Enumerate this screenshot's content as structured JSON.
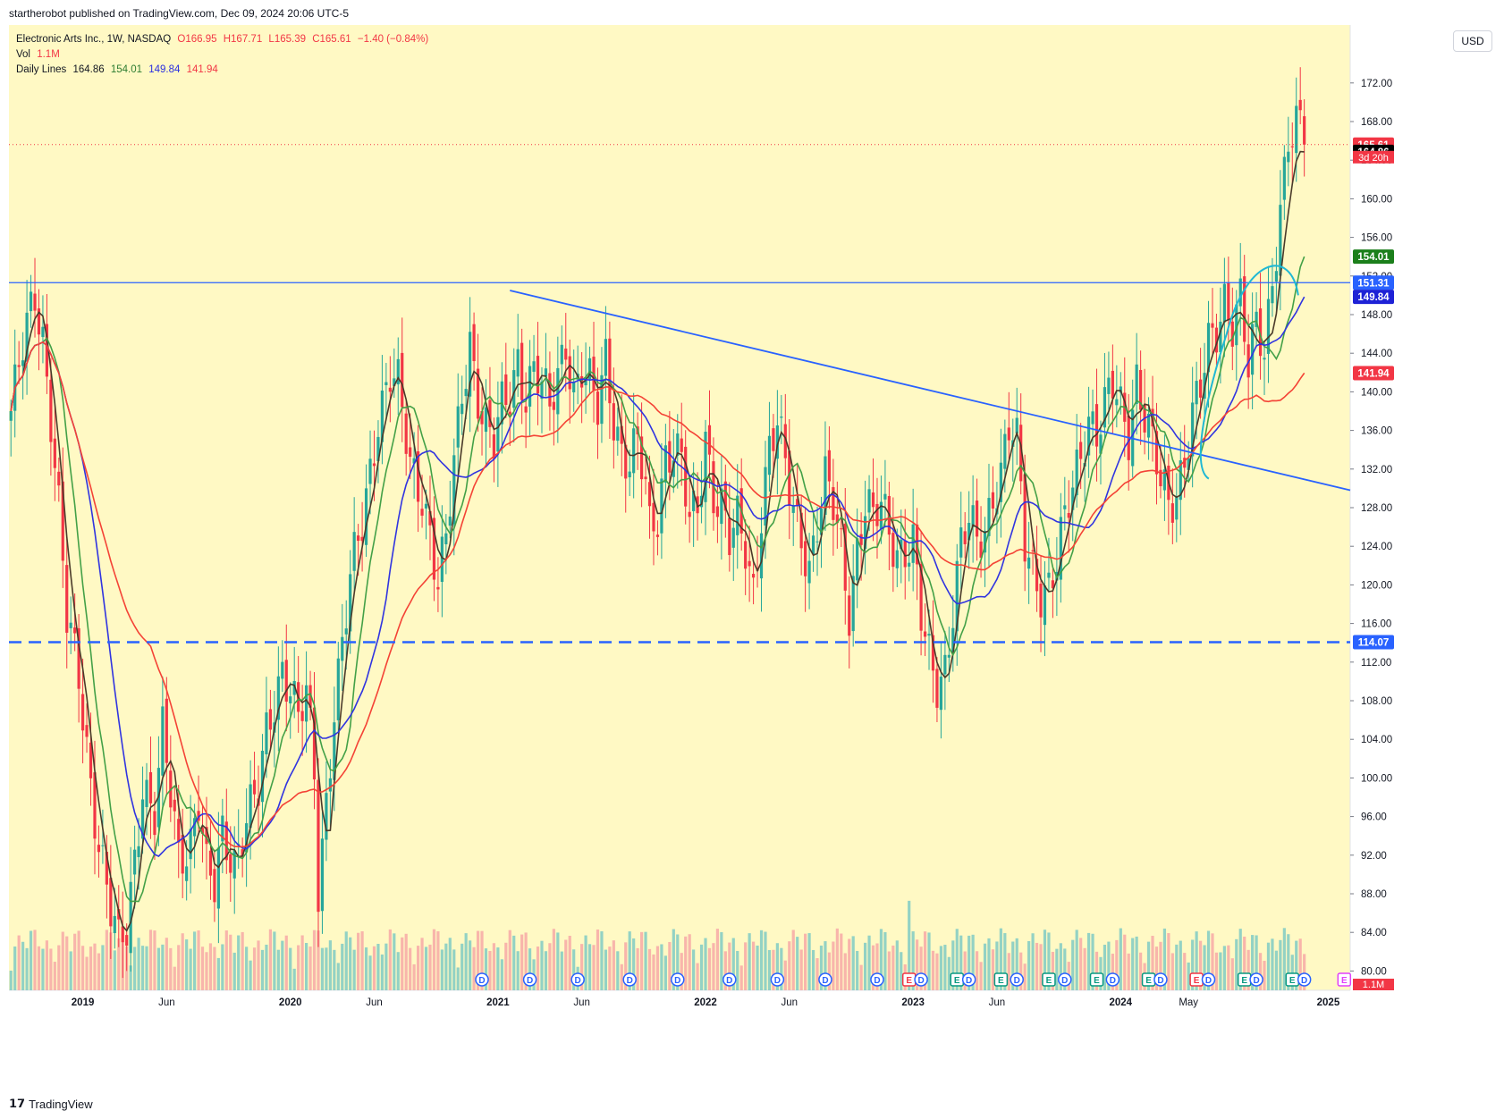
{
  "publisher": "startherobot published on TradingView.com, Dec 09, 2024 20:06 UTC-5",
  "legend": {
    "symbol": "Electronic Arts Inc., 1W, NASDAQ",
    "open": "O166.95",
    "high": "H167.71",
    "low": "L165.39",
    "close": "C165.61",
    "change": "−1.40 (−0.84%)",
    "vol_label": "Vol",
    "vol_value": "1.1M",
    "ma_label": "Daily Lines",
    "ma_values": [
      "164.86",
      "154.01",
      "149.84",
      "141.94"
    ]
  },
  "currency_button": "USD",
  "branding": "TradingView",
  "colors": {
    "background": "#fff9c4",
    "up": "#26a69a",
    "down": "#f23645",
    "ma_fast": "#4a3a2a",
    "ma_green": "#43a047",
    "ma_blue": "#3034e0",
    "ma_red": "#f44336",
    "trendline": "#2962ff",
    "circle": "#1fb8d4"
  },
  "chart_data": {
    "type": "candlestick",
    "symbol": "EA",
    "timeframe": "1W",
    "y_range": [
      78,
      178
    ],
    "y_ticks": [
      "80.00",
      "84.00",
      "88.00",
      "92.00",
      "96.00",
      "100.00",
      "104.00",
      "108.00",
      "112.00",
      "116.00",
      "120.00",
      "124.00",
      "128.00",
      "132.00",
      "136.00",
      "140.00",
      "144.00",
      "148.00",
      "152.00",
      "156.00",
      "160.00",
      "164.00",
      "168.00",
      "172.00"
    ],
    "x_ticks": [
      {
        "label": "2019",
        "week": 18
      },
      {
        "label": "Jun",
        "week": 39
      },
      {
        "label": "2020",
        "week": 70
      },
      {
        "label": "Jun",
        "week": 91
      },
      {
        "label": "2021",
        "week": 122
      },
      {
        "label": "Jun",
        "week": 143
      },
      {
        "label": "2022",
        "week": 174
      },
      {
        "label": "Jun",
        "week": 195
      },
      {
        "label": "2023",
        "week": 226
      },
      {
        "label": "Jun",
        "week": 247
      },
      {
        "label": "2024",
        "week": 278
      },
      {
        "label": "May",
        "week": 295
      },
      {
        "label": "2025",
        "week": 330
      }
    ],
    "weeks_total": 336,
    "close_path": [
      [
        0,
        138
      ],
      [
        4,
        146
      ],
      [
        6,
        150
      ],
      [
        8,
        146
      ],
      [
        10,
        138
      ],
      [
        12,
        128
      ],
      [
        14,
        116
      ],
      [
        17,
        110
      ],
      [
        20,
        100
      ],
      [
        22,
        94
      ],
      [
        25,
        86
      ],
      [
        27,
        82
      ],
      [
        29,
        84
      ],
      [
        31,
        92
      ],
      [
        33,
        100
      ],
      [
        36,
        96
      ],
      [
        38,
        104
      ],
      [
        40,
        98
      ],
      [
        42,
        92
      ],
      [
        45,
        94
      ],
      [
        47,
        98
      ],
      [
        49,
        90
      ],
      [
        51,
        88
      ],
      [
        53,
        94
      ],
      [
        56,
        92
      ],
      [
        59,
        96
      ],
      [
        62,
        98
      ],
      [
        64,
        104
      ],
      [
        66,
        108
      ],
      [
        68,
        112
      ],
      [
        70,
        110
      ],
      [
        72,
        106
      ],
      [
        74,
        108
      ],
      [
        76,
        100
      ],
      [
        77,
        88
      ],
      [
        79,
        98
      ],
      [
        81,
        108
      ],
      [
        83,
        114
      ],
      [
        85,
        120
      ],
      [
        88,
        126
      ],
      [
        90,
        132
      ],
      [
        92,
        138
      ],
      [
        95,
        142
      ],
      [
        97,
        140
      ],
      [
        100,
        132
      ],
      [
        103,
        130
      ],
      [
        105,
        126
      ],
      [
        107,
        120
      ],
      [
        109,
        124
      ],
      [
        111,
        132
      ],
      [
        113,
        140
      ],
      [
        115,
        146
      ],
      [
        117,
        140
      ],
      [
        119,
        136
      ],
      [
        121,
        134
      ],
      [
        123,
        138
      ],
      [
        125,
        140
      ],
      [
        127,
        144
      ],
      [
        129,
        140
      ],
      [
        131,
        142
      ],
      [
        133,
        140
      ],
      [
        135,
        138
      ],
      [
        137,
        142
      ],
      [
        139,
        146
      ],
      [
        141,
        140
      ],
      [
        143,
        142
      ],
      [
        145,
        140
      ],
      [
        147,
        138
      ],
      [
        149,
        144
      ],
      [
        151,
        138
      ],
      [
        153,
        134
      ],
      [
        155,
        132
      ],
      [
        157,
        134
      ],
      [
        159,
        130
      ],
      [
        160,
        126
      ],
      [
        162,
        128
      ],
      [
        164,
        134
      ],
      [
        166,
        134
      ],
      [
        168,
        132
      ],
      [
        170,
        126
      ],
      [
        172,
        128
      ],
      [
        174,
        136
      ],
      [
        176,
        130
      ],
      [
        178,
        128
      ],
      [
        180,
        124
      ],
      [
        182,
        126
      ],
      [
        184,
        124
      ],
      [
        186,
        120
      ],
      [
        188,
        128
      ],
      [
        190,
        134
      ],
      [
        192,
        136
      ],
      [
        194,
        132
      ],
      [
        196,
        128
      ],
      [
        198,
        126
      ],
      [
        200,
        122
      ],
      [
        202,
        126
      ],
      [
        204,
        130
      ],
      [
        206,
        128
      ],
      [
        208,
        124
      ],
      [
        210,
        118
      ],
      [
        212,
        124
      ],
      [
        214,
        128
      ],
      [
        216,
        126
      ],
      [
        218,
        128
      ],
      [
        220,
        126
      ],
      [
        222,
        124
      ],
      [
        224,
        124
      ],
      [
        226,
        124
      ],
      [
        228,
        116
      ],
      [
        230,
        112
      ],
      [
        232,
        110
      ],
      [
        234,
        112
      ],
      [
        236,
        118
      ],
      [
        238,
        124
      ],
      [
        240,
        126
      ],
      [
        242,
        124
      ],
      [
        244,
        126
      ],
      [
        246,
        130
      ],
      [
        248,
        132
      ],
      [
        250,
        136
      ],
      [
        252,
        134
      ],
      [
        254,
        124
      ],
      [
        256,
        122
      ],
      [
        258,
        120
      ],
      [
        260,
        120
      ],
      [
        262,
        122
      ],
      [
        264,
        126
      ],
      [
        266,
        130
      ],
      [
        268,
        134
      ],
      [
        270,
        138
      ],
      [
        272,
        136
      ],
      [
        274,
        138
      ],
      [
        276,
        140
      ],
      [
        278,
        138
      ],
      [
        280,
        136
      ],
      [
        282,
        142
      ],
      [
        284,
        138
      ],
      [
        286,
        134
      ],
      [
        288,
        130
      ],
      [
        290,
        128
      ],
      [
        292,
        130
      ],
      [
        294,
        134
      ],
      [
        296,
        138
      ],
      [
        298,
        140
      ],
      [
        300,
        144
      ],
      [
        302,
        146
      ],
      [
        304,
        150
      ],
      [
        306,
        148
      ],
      [
        308,
        150
      ],
      [
        310,
        142
      ],
      [
        312,
        146
      ],
      [
        314,
        144
      ],
      [
        316,
        152
      ],
      [
        318,
        160
      ],
      [
        320,
        166
      ],
      [
        322,
        167
      ],
      [
        324,
        166
      ]
    ],
    "moving_averages": [
      {
        "name": "Daily Lines 1",
        "color": "#4a3a2a",
        "last": 164.86
      },
      {
        "name": "Daily Lines 2",
        "color": "#43a047",
        "last": 154.01
      },
      {
        "name": "Daily Lines 3",
        "color": "#3034e0",
        "last": 149.84
      },
      {
        "name": "Daily Lines 4",
        "color": "#f44336",
        "last": 141.94
      }
    ],
    "horizontal_lines": [
      {
        "value": 151.31,
        "style": "solid",
        "color": "#2962ff"
      },
      {
        "value": 114.07,
        "style": "dashed",
        "color": "#2962ff"
      }
    ],
    "trendline": {
      "from": {
        "week": 125,
        "value": 150.5
      },
      "to": {
        "week": 336,
        "value": 129.8
      }
    },
    "price_labels": [
      {
        "value": 165.61,
        "text": "165.61",
        "color": "#f23645"
      },
      {
        "value": 164.86,
        "text": "164.86",
        "color": "#000000"
      },
      {
        "value": 154.01,
        "text": "154.01",
        "color": "#1b7f1b"
      },
      {
        "value": 151.31,
        "text": "151.31",
        "color": "#2962ff"
      },
      {
        "value": 149.84,
        "text": "149.84",
        "color": "#1e22d6"
      },
      {
        "value": 141.94,
        "text": "141.94",
        "color": "#f23645"
      },
      {
        "value": 114.07,
        "text": "114.07",
        "color": "#2962ff"
      }
    ],
    "countdown_label": "3d 20h",
    "volume_label": "1.1M",
    "event_markers": [
      {
        "type": "D",
        "week": 118
      },
      {
        "type": "D",
        "week": 130
      },
      {
        "type": "D",
        "week": 142
      },
      {
        "type": "D",
        "week": 155
      },
      {
        "type": "D",
        "week": 167
      },
      {
        "type": "D",
        "week": 180
      },
      {
        "type": "D",
        "week": 192
      },
      {
        "type": "D",
        "week": 204
      },
      {
        "type": "D",
        "week": 217
      },
      {
        "type": "E",
        "week": 225
      },
      {
        "type": "D",
        "week": 228
      },
      {
        "type": "E",
        "week": 237
      },
      {
        "type": "D",
        "week": 240
      },
      {
        "type": "E",
        "week": 248
      },
      {
        "type": "D",
        "week": 252
      },
      {
        "type": "E",
        "week": 260
      },
      {
        "type": "D",
        "week": 264
      },
      {
        "type": "E",
        "week": 272
      },
      {
        "type": "D",
        "week": 276
      },
      {
        "type": "E",
        "week": 285
      },
      {
        "type": "D",
        "week": 288
      },
      {
        "type": "E",
        "week": 297
      },
      {
        "type": "D",
        "week": 300
      },
      {
        "type": "E",
        "week": 309
      },
      {
        "type": "D",
        "week": 312
      },
      {
        "type": "E",
        "week": 321
      },
      {
        "type": "D",
        "week": 324
      },
      {
        "type": "E",
        "week": 334
      }
    ]
  }
}
